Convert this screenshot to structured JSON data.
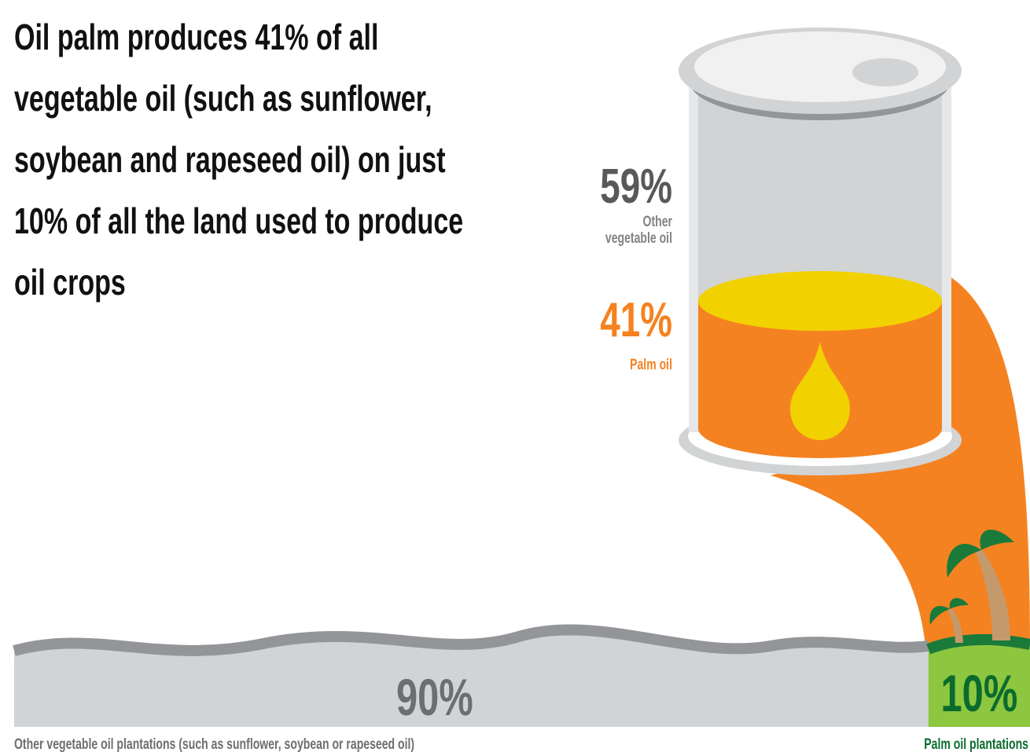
{
  "chart_data": [
    {
      "type": "barrel",
      "title": "Oil palm produces 41% of all vegetable oil (such as sunflower, soybean and rapeseed oil) on just 10% of all the land used to produce oil crops",
      "categories": [
        "Other vegetable oil",
        "Palm oil"
      ],
      "values": [
        59,
        41
      ],
      "value_labels": [
        "59%",
        "41%"
      ],
      "colors": [
        "#d1d3d4",
        "#f58220"
      ],
      "label_colors": [
        "#58595b",
        "#f58220"
      ]
    },
    {
      "type": "land",
      "categories": [
        "Other vegetable oil plantations (such as sunflower, soybean or rapeseed oil)",
        "Palm oil plantations"
      ],
      "values": [
        90,
        10
      ],
      "value_labels": [
        "90%",
        "10%"
      ],
      "colors": [
        "#d1d3d4",
        "#8dc63f"
      ],
      "label_colors": [
        "#6d6e71",
        "#0b6b2e"
      ]
    }
  ]
}
